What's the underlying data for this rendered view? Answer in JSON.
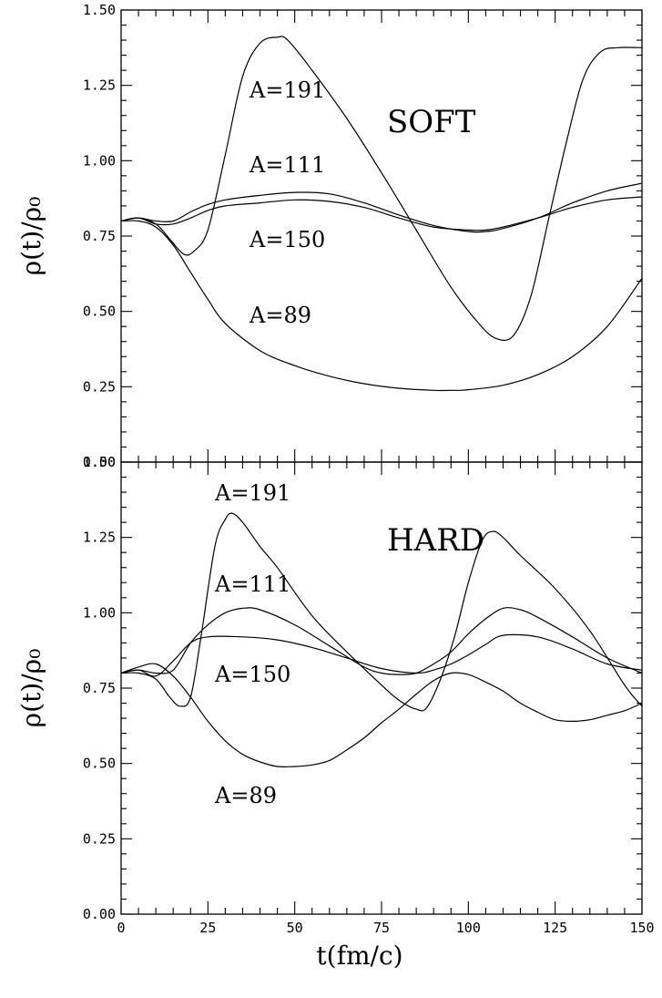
{
  "chart_data": [
    {
      "type": "line",
      "title": "SOFT",
      "xlabel": "",
      "ylabel": "ρ(t)/ρ₀",
      "xlim": [
        0,
        150
      ],
      "ylim": [
        0,
        1.5
      ],
      "x_ticks": [
        "0",
        "25",
        "50",
        "75",
        "100",
        "125",
        "150"
      ],
      "y_ticks": [
        "0.00",
        "0.25",
        "0.50",
        "0.75",
        "1.00",
        "1.25",
        "1.50"
      ],
      "series": [
        {
          "name": "A=191",
          "x": [
            0,
            5,
            10,
            14,
            18,
            21,
            25,
            30,
            35,
            40,
            45,
            48,
            55,
            65,
            75,
            85,
            95,
            103,
            108,
            113,
            118,
            123,
            128,
            133,
            138,
            143,
            150
          ],
          "values": [
            0.8,
            0.81,
            0.79,
            0.74,
            0.69,
            0.7,
            0.77,
            1.02,
            1.28,
            1.39,
            1.41,
            1.4,
            1.3,
            1.14,
            0.96,
            0.77,
            0.58,
            0.46,
            0.41,
            0.42,
            0.55,
            0.8,
            1.05,
            1.27,
            1.36,
            1.375,
            1.375
          ]
        },
        {
          "name": "A=111",
          "x": [
            0,
            5,
            10,
            15,
            20,
            25,
            30,
            40,
            50,
            60,
            70,
            80,
            90,
            100,
            105,
            110,
            120,
            130,
            140,
            150
          ],
          "values": [
            0.8,
            0.81,
            0.8,
            0.8,
            0.83,
            0.855,
            0.87,
            0.885,
            0.895,
            0.89,
            0.86,
            0.82,
            0.785,
            0.765,
            0.765,
            0.775,
            0.81,
            0.86,
            0.9,
            0.925
          ]
        },
        {
          "name": "A=150",
          "x": [
            0,
            5,
            10,
            15,
            20,
            25,
            30,
            40,
            50,
            60,
            70,
            80,
            90,
            100,
            105,
            110,
            120,
            130,
            140,
            150
          ],
          "values": [
            0.8,
            0.81,
            0.79,
            0.79,
            0.81,
            0.835,
            0.85,
            0.86,
            0.87,
            0.865,
            0.845,
            0.81,
            0.78,
            0.77,
            0.77,
            0.78,
            0.81,
            0.845,
            0.87,
            0.88
          ]
        },
        {
          "name": "A=89",
          "x": [
            0,
            5,
            10,
            15,
            20,
            25,
            30,
            40,
            50,
            60,
            70,
            80,
            90,
            95,
            100,
            110,
            120,
            130,
            140,
            150
          ],
          "values": [
            0.8,
            0.8,
            0.78,
            0.72,
            0.63,
            0.54,
            0.46,
            0.37,
            0.32,
            0.285,
            0.26,
            0.245,
            0.238,
            0.238,
            0.24,
            0.255,
            0.29,
            0.35,
            0.45,
            0.61
          ]
        }
      ],
      "labels": {
        "s191": "A=191",
        "s111": "A=111",
        "s150": "A=150",
        "s89": "A=89"
      }
    },
    {
      "type": "line",
      "title": "HARD",
      "xlabel": "t(fm/c)",
      "ylabel": "ρ(t)/ρ₀",
      "xlim": [
        0,
        150
      ],
      "ylim": [
        0,
        1.5
      ],
      "x_ticks": [
        "0",
        "25",
        "50",
        "75",
        "100",
        "125",
        "150"
      ],
      "y_ticks": [
        "0.00",
        "0.25",
        "0.50",
        "0.75",
        "1.00",
        "1.25",
        "1.50"
      ],
      "series": [
        {
          "name": "A=191",
          "x": [
            0,
            5,
            10,
            14,
            17,
            20,
            23,
            27,
            30,
            32,
            35,
            40,
            45,
            55,
            65,
            75,
            80,
            85,
            88,
            92,
            96,
            100,
            104,
            107,
            110,
            115,
            125,
            135,
            145,
            150
          ],
          "values": [
            0.8,
            0.8,
            0.78,
            0.72,
            0.69,
            0.72,
            0.92,
            1.22,
            1.31,
            1.33,
            1.3,
            1.22,
            1.15,
            0.99,
            0.87,
            0.76,
            0.71,
            0.68,
            0.685,
            0.78,
            0.92,
            1.1,
            1.24,
            1.27,
            1.25,
            1.19,
            1.08,
            0.94,
            0.76,
            0.69
          ]
        },
        {
          "name": "A=111",
          "x": [
            0,
            5,
            10,
            15,
            20,
            25,
            30,
            35,
            40,
            50,
            60,
            70,
            75,
            80,
            85,
            90,
            95,
            100,
            105,
            110,
            115,
            120,
            130,
            140,
            150
          ],
          "values": [
            0.8,
            0.81,
            0.8,
            0.81,
            0.9,
            0.96,
            1.0,
            1.015,
            1.01,
            0.96,
            0.89,
            0.82,
            0.8,
            0.795,
            0.8,
            0.83,
            0.87,
            0.93,
            0.98,
            1.015,
            1.01,
            0.985,
            0.92,
            0.85,
            0.8
          ]
        },
        {
          "name": "A=150",
          "x": [
            0,
            5,
            10,
            15,
            20,
            25,
            35,
            45,
            55,
            65,
            75,
            85,
            90,
            95,
            100,
            105,
            110,
            120,
            130,
            140,
            150
          ],
          "values": [
            0.8,
            0.81,
            0.79,
            0.84,
            0.9,
            0.92,
            0.92,
            0.91,
            0.885,
            0.85,
            0.815,
            0.8,
            0.81,
            0.83,
            0.86,
            0.895,
            0.925,
            0.92,
            0.88,
            0.83,
            0.81
          ]
        },
        {
          "name": "A=89",
          "x": [
            0,
            5,
            10,
            15,
            20,
            25,
            30,
            35,
            40,
            45,
            50,
            55,
            60,
            65,
            70,
            75,
            80,
            85,
            90,
            95,
            100,
            105,
            110,
            115,
            120,
            125,
            130,
            135,
            140,
            145,
            150
          ],
          "values": [
            0.8,
            0.82,
            0.83,
            0.79,
            0.72,
            0.64,
            0.575,
            0.53,
            0.505,
            0.49,
            0.49,
            0.495,
            0.51,
            0.545,
            0.585,
            0.635,
            0.68,
            0.73,
            0.775,
            0.8,
            0.795,
            0.77,
            0.74,
            0.7,
            0.67,
            0.645,
            0.64,
            0.645,
            0.66,
            0.675,
            0.7
          ]
        }
      ],
      "labels": {
        "s191": "A=191",
        "s111": "A=111",
        "s150": "A=150",
        "s89": "A=89"
      }
    }
  ]
}
